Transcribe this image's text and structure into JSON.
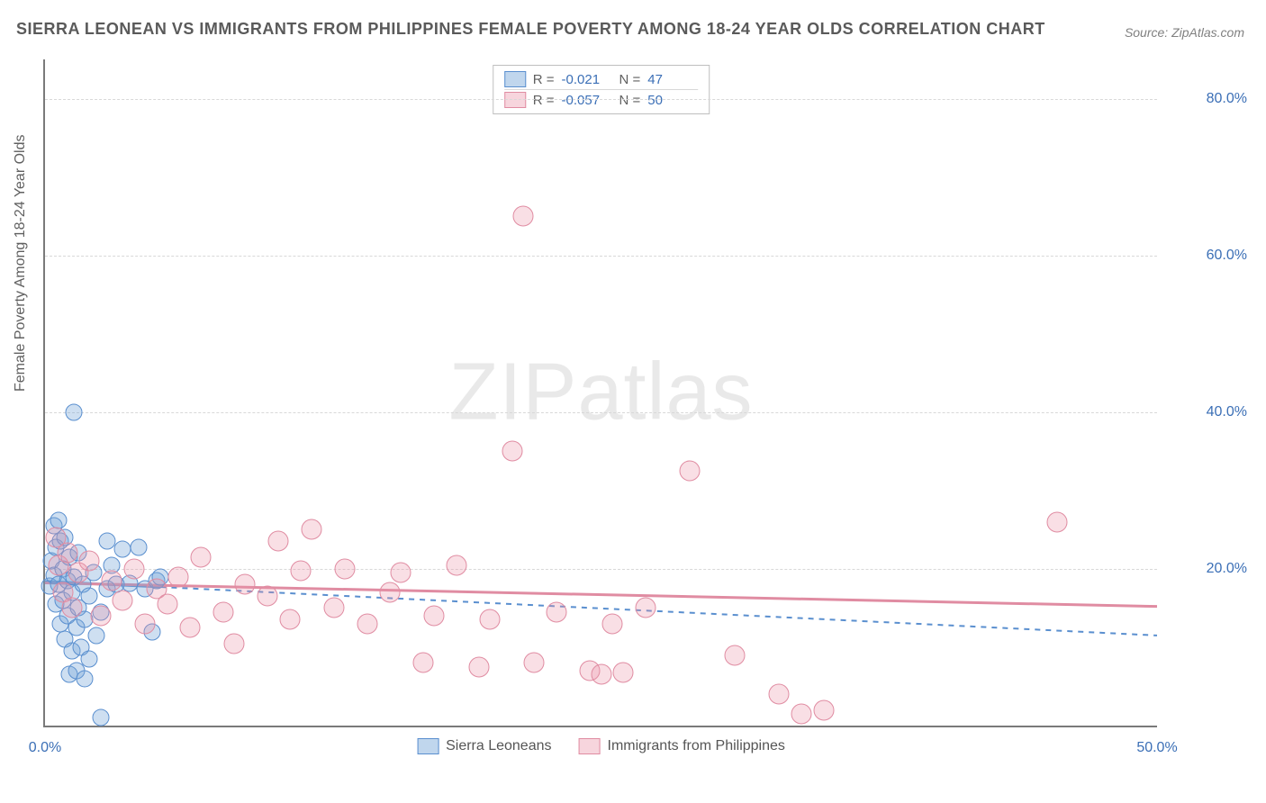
{
  "title": "SIERRA LEONEAN VS IMMIGRANTS FROM PHILIPPINES FEMALE POVERTY AMONG 18-24 YEAR OLDS CORRELATION CHART",
  "source": "Source: ZipAtlas.com",
  "watermark": {
    "part1": "ZIP",
    "part2": "atlas"
  },
  "y_axis_title": "Female Poverty Among 18-24 Year Olds",
  "chart": {
    "type": "scatter-with-regression",
    "background_color": "#ffffff",
    "grid_color": "#d8d8d8",
    "axis_color": "#7a7a7a",
    "tick_label_color": "#3b6fb6",
    "tick_fontsize": 16,
    "xlim": [
      0,
      50
    ],
    "ylim": [
      0,
      85
    ],
    "x_ticks": [
      {
        "value": 0,
        "label": "0.0%"
      },
      {
        "value": 50,
        "label": "50.0%"
      }
    ],
    "y_ticks": [
      {
        "value": 20,
        "label": "20.0%"
      },
      {
        "value": 40,
        "label": "40.0%"
      },
      {
        "value": 60,
        "label": "60.0%"
      },
      {
        "value": 80,
        "label": "80.0%"
      }
    ],
    "marker_radius_blue": 8.5,
    "marker_radius_pink": 10.5,
    "line_width": 2,
    "series": [
      {
        "name": "Sierra Leoneans",
        "color_fill": "rgba(115,163,216,0.35)",
        "color_stroke": "#5a8fcf",
        "R": "-0.021",
        "N": "47",
        "trend": {
          "y_at_x0": 18.4,
          "y_at_x50": 11.5,
          "dash": "5,5",
          "stroke": "#5a8fcf"
        },
        "trend_solid_until_x": 5.2,
        "points": [
          [
            0.2,
            17.8
          ],
          [
            0.3,
            21.0
          ],
          [
            0.4,
            25.5
          ],
          [
            0.4,
            19.2
          ],
          [
            0.5,
            15.5
          ],
          [
            0.5,
            22.8
          ],
          [
            0.6,
            26.2
          ],
          [
            0.6,
            18.0
          ],
          [
            0.7,
            13.0
          ],
          [
            0.7,
            23.5
          ],
          [
            0.8,
            20.0
          ],
          [
            0.8,
            16.0
          ],
          [
            0.9,
            11.0
          ],
          [
            0.9,
            24.0
          ],
          [
            1.0,
            18.5
          ],
          [
            1.0,
            14.0
          ],
          [
            1.1,
            6.5
          ],
          [
            1.1,
            21.5
          ],
          [
            1.2,
            17.0
          ],
          [
            1.2,
            9.5
          ],
          [
            1.3,
            40.0
          ],
          [
            1.3,
            19.0
          ],
          [
            1.4,
            12.5
          ],
          [
            1.4,
            7.0
          ],
          [
            1.5,
            22.0
          ],
          [
            1.5,
            15.0
          ],
          [
            1.6,
            10.0
          ],
          [
            1.7,
            18.0
          ],
          [
            1.8,
            13.5
          ],
          [
            1.8,
            6.0
          ],
          [
            2.0,
            16.5
          ],
          [
            2.0,
            8.5
          ],
          [
            2.2,
            19.5
          ],
          [
            2.3,
            11.5
          ],
          [
            2.5,
            1.0
          ],
          [
            2.5,
            14.5
          ],
          [
            2.8,
            17.5
          ],
          [
            2.8,
            23.5
          ],
          [
            3.0,
            20.5
          ],
          [
            3.2,
            18.0
          ],
          [
            3.5,
            22.5
          ],
          [
            3.8,
            18.2
          ],
          [
            4.2,
            22.8
          ],
          [
            4.5,
            17.5
          ],
          [
            4.8,
            12.0
          ],
          [
            5.0,
            18.5
          ],
          [
            5.2,
            19.0
          ]
        ]
      },
      {
        "name": "Immigrants from Philippines",
        "color_fill": "rgba(235,150,170,0.30)",
        "color_stroke": "#e08ca2",
        "R": "-0.057",
        "N": "50",
        "trend": {
          "y_at_x0": 18.2,
          "y_at_x50": 15.2,
          "dash": "none",
          "stroke": "#e08ca2"
        },
        "points": [
          [
            0.5,
            24.0
          ],
          [
            0.6,
            20.5
          ],
          [
            0.8,
            17.0
          ],
          [
            1.0,
            22.0
          ],
          [
            1.2,
            15.0
          ],
          [
            1.5,
            19.5
          ],
          [
            2.0,
            21.0
          ],
          [
            2.5,
            14.0
          ],
          [
            3.0,
            18.5
          ],
          [
            3.5,
            16.0
          ],
          [
            4.0,
            20.0
          ],
          [
            4.5,
            13.0
          ],
          [
            5.0,
            17.5
          ],
          [
            5.5,
            15.5
          ],
          [
            6.0,
            19.0
          ],
          [
            6.5,
            12.5
          ],
          [
            7.0,
            21.5
          ],
          [
            8.0,
            14.5
          ],
          [
            8.5,
            10.5
          ],
          [
            9.0,
            18.0
          ],
          [
            10.0,
            16.5
          ],
          [
            10.5,
            23.5
          ],
          [
            11.0,
            13.5
          ],
          [
            11.5,
            19.8
          ],
          [
            12.0,
            25.0
          ],
          [
            13.0,
            15.0
          ],
          [
            13.5,
            20.0
          ],
          [
            14.5,
            13.0
          ],
          [
            15.5,
            17.0
          ],
          [
            16.0,
            19.5
          ],
          [
            17.0,
            8.0
          ],
          [
            17.5,
            14.0
          ],
          [
            18.5,
            20.5
          ],
          [
            19.5,
            7.5
          ],
          [
            20.0,
            13.5
          ],
          [
            21.0,
            35.0
          ],
          [
            21.5,
            65.0
          ],
          [
            22.0,
            8.0
          ],
          [
            23.0,
            14.5
          ],
          [
            24.5,
            7.0
          ],
          [
            25.0,
            6.5
          ],
          [
            25.5,
            13.0
          ],
          [
            27.0,
            15.0
          ],
          [
            29.0,
            32.5
          ],
          [
            31.0,
            9.0
          ],
          [
            33.0,
            4.0
          ],
          [
            34.0,
            1.5
          ],
          [
            35.0,
            2.0
          ],
          [
            45.5,
            26.0
          ],
          [
            26.0,
            6.8
          ]
        ]
      }
    ]
  },
  "legend_top": {
    "r_label": "R =",
    "n_label": "N ="
  },
  "legend_bottom": {
    "items": [
      "Sierra Leoneans",
      "Immigrants from Philippines"
    ]
  }
}
